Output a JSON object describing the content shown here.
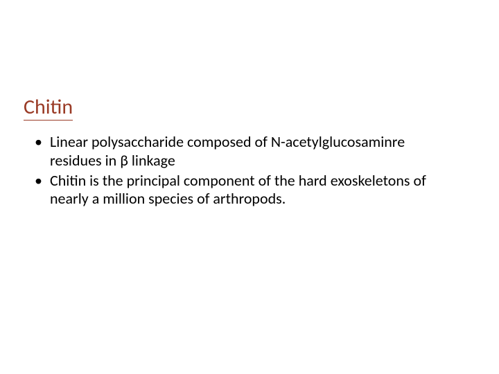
{
  "slide": {
    "title": "Chitin",
    "title_color": "#9a3b26",
    "title_underline_color": "#9a3b26",
    "title_fontsize": 30,
    "body_color": "#000000",
    "body_fontsize": 22,
    "background_color": "#ffffff",
    "bullets": [
      "Linear polysaccharide composed of N-acetylglucosaminre residues in β linkage",
      "Chitin is the principal component of the hard exoskeletons of nearly a million species of arthropods."
    ]
  }
}
